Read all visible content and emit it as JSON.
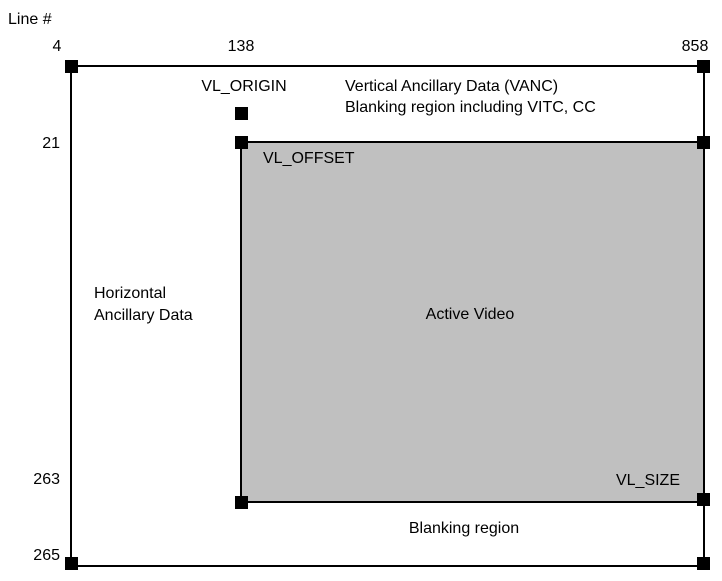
{
  "axis_title": "Line #",
  "column_labels": {
    "left": "4",
    "mid": "138",
    "right": "858"
  },
  "row_labels": {
    "top": "21",
    "bottom_inner": "263",
    "bottom_outer": "265"
  },
  "markers": {
    "vl_origin": "VL_ORIGIN",
    "vl_offset": "VL_OFFSET",
    "vl_size": "VL_SIZE"
  },
  "regions": {
    "vanc_line1": "Vertical Ancillary Data (VANC)",
    "vanc_line2": "Blanking region including VITC, CC",
    "hanc_line1": "Horizontal",
    "hanc_line2": "Ancillary Data",
    "active": "Active Video",
    "blanking": "Blanking region"
  },
  "colors": {
    "active_fill": "#c0c0c0",
    "stroke": "#000000"
  }
}
